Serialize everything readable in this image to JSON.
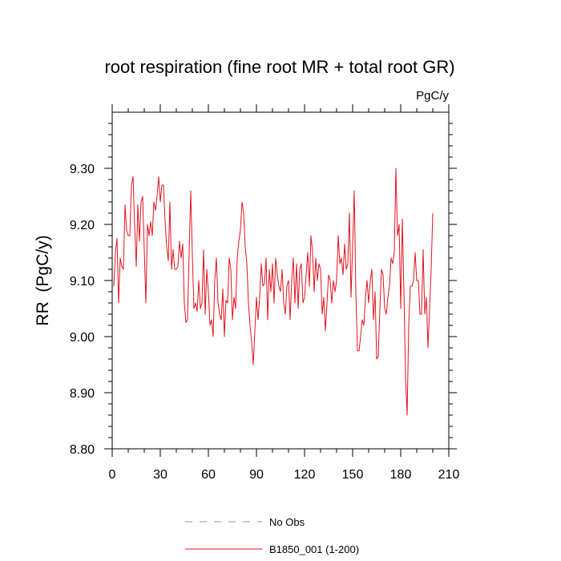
{
  "chart_data": {
    "type": "line",
    "title": "root respiration (fine root MR + total root GR)",
    "units_label": "PgC/y",
    "xlabel": "",
    "ylabel": "RR  (PgC/y)",
    "xlim": [
      0,
      210
    ],
    "ylim": [
      8.8,
      9.4
    ],
    "xticks": [
      0,
      30,
      60,
      90,
      120,
      150,
      180,
      210
    ],
    "xtick_labels": [
      "0",
      "30",
      "60",
      "90",
      "120",
      "150",
      "180",
      "210"
    ],
    "yticks": [
      8.8,
      8.9,
      9.0,
      9.1,
      9.2,
      9.3
    ],
    "ytick_labels": [
      "8.80",
      "8.90",
      "9.00",
      "9.10",
      "9.20",
      "9.30"
    ],
    "legend": [
      {
        "label": "No Obs",
        "color": "#8a8ae6",
        "style": "dashed"
      },
      {
        "label": "B1850_001 (1-200)",
        "color": "#e0141e",
        "style": "solid"
      }
    ],
    "series": [
      {
        "name": "B1850_001 (1-200)",
        "color": "#e0141e",
        "x": [
          1,
          2,
          3,
          4,
          5,
          6,
          7,
          8,
          9,
          10,
          11,
          12,
          13,
          14,
          15,
          16,
          17,
          18,
          19,
          20,
          21,
          22,
          23,
          24,
          25,
          26,
          27,
          28,
          29,
          30,
          31,
          32,
          33,
          34,
          35,
          36,
          37,
          38,
          39,
          40,
          41,
          42,
          43,
          44,
          45,
          46,
          47,
          48,
          49,
          50,
          51,
          52,
          53,
          54,
          55,
          56,
          57,
          58,
          59,
          60,
          61,
          62,
          63,
          64,
          65,
          66,
          67,
          68,
          69,
          70,
          71,
          72,
          73,
          74,
          75,
          76,
          77,
          78,
          79,
          80,
          81,
          82,
          83,
          84,
          85,
          86,
          87,
          88,
          89,
          90,
          91,
          92,
          93,
          94,
          95,
          96,
          97,
          98,
          99,
          100,
          101,
          102,
          103,
          104,
          105,
          106,
          107,
          108,
          109,
          110,
          111,
          112,
          113,
          114,
          115,
          116,
          117,
          118,
          119,
          120,
          121,
          122,
          123,
          124,
          125,
          126,
          127,
          128,
          129,
          130,
          131,
          132,
          133,
          134,
          135,
          136,
          137,
          138,
          139,
          140,
          141,
          142,
          143,
          144,
          145,
          146,
          147,
          148,
          149,
          150,
          151,
          152,
          153,
          154,
          155,
          156,
          157,
          158,
          159,
          160,
          161,
          162,
          163,
          164,
          165,
          166,
          167,
          168,
          169,
          170,
          171,
          172,
          173,
          174,
          175,
          176,
          177,
          178,
          179,
          180,
          181,
          182,
          183,
          184,
          185,
          186,
          187,
          188,
          189,
          190,
          191,
          192,
          193,
          194,
          195,
          196,
          197,
          198,
          199,
          200
        ],
        "values": [
          9.09,
          9.15,
          9.175,
          9.06,
          9.14,
          9.125,
          9.12,
          9.235,
          9.19,
          9.18,
          9.18,
          9.27,
          9.285,
          9.2,
          9.125,
          9.235,
          9.17,
          9.24,
          9.25,
          9.155,
          9.06,
          9.2,
          9.18,
          9.205,
          9.18,
          9.24,
          9.225,
          9.25,
          9.285,
          9.24,
          9.27,
          9.27,
          9.205,
          9.16,
          9.135,
          9.24,
          9.12,
          9.155,
          9.12,
          9.12,
          9.125,
          9.17,
          9.14,
          9.165,
          9.06,
          9.025,
          9.03,
          9.15,
          9.26,
          9.145,
          9.05,
          9.06,
          9.045,
          9.1,
          9.05,
          9.06,
          9.155,
          9.04,
          9.12,
          9.08,
          9.02,
          9.03,
          9.0,
          9.1,
          9.14,
          9.06,
          9.04,
          9.03,
          9.085,
          9.0,
          9.065,
          9.06,
          9.14,
          9.12,
          9.03,
          9.07,
          9.05,
          9.14,
          9.17,
          9.19,
          9.24,
          9.22,
          9.16,
          9.13,
          9.06,
          9.02,
          8.99,
          8.95,
          9.01,
          9.07,
          9.03,
          9.07,
          9.13,
          9.09,
          9.095,
          9.14,
          9.03,
          9.12,
          9.08,
          9.13,
          9.06,
          9.14,
          9.11,
          9.09,
          9.08,
          9.12,
          9.06,
          9.04,
          9.09,
          9.1,
          9.03,
          9.1,
          9.14,
          9.06,
          9.13,
          9.05,
          9.12,
          9.13,
          9.06,
          9.07,
          9.11,
          9.15,
          9.09,
          9.18,
          9.15,
          9.08,
          9.14,
          9.1,
          9.13,
          9.12,
          9.04,
          9.07,
          9.01,
          9.06,
          9.11,
          9.1,
          9.06,
          9.1,
          9.08,
          9.1,
          9.18,
          9.13,
          9.14,
          9.11,
          9.165,
          9.12,
          9.13,
          9.22,
          9.07,
          9.16,
          9.26,
          9.08,
          8.975,
          8.975,
          9.0,
          9.03,
          9.02,
          9.07,
          9.1,
          9.06,
          9.1,
          9.12,
          9.03,
          9.08,
          8.96,
          8.965,
          9.05,
          9.12,
          9.11,
          9.05,
          9.04,
          9.07,
          9.09,
          9.14,
          9.13,
          9.15,
          9.3,
          9.18,
          9.2,
          9.05,
          9.21,
          9.08,
          8.93,
          8.86,
          9.02,
          9.09,
          9.09,
          9.1,
          9.15,
          9.1,
          9.1,
          9.04,
          9.04,
          9.155,
          9.04,
          9.07,
          8.98,
          9.05,
          9.12,
          9.22
        ]
      }
    ]
  }
}
